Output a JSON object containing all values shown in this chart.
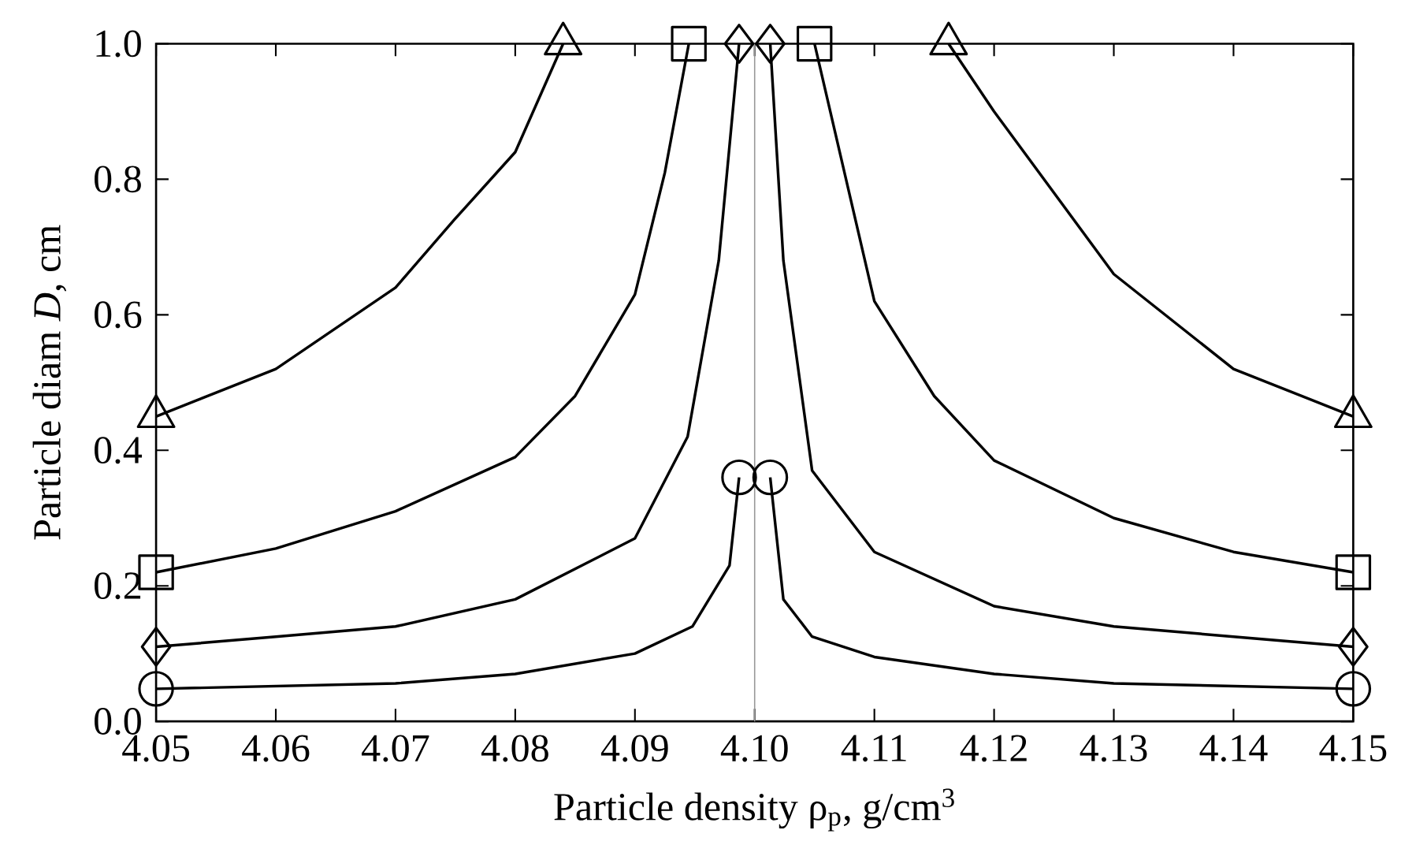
{
  "chart_data": {
    "type": "line",
    "xlabel": "Particle density ρ$_{p}$, g/cm$^{3}$",
    "ylabel": "Particle diam *D*, cm",
    "xlim": [
      4.05,
      4.15
    ],
    "ylim": [
      0,
      1.0
    ],
    "xticks": [
      4.05,
      4.06,
      4.07,
      4.08,
      4.09,
      {
        "value": 4.1,
        "label": "4.10"
      },
      4.11,
      4.12,
      4.13,
      4.14,
      4.15
    ],
    "yticks": [
      {
        "value": 0,
        "label": "0.0"
      },
      0.2,
      0.4,
      0.6,
      0.8,
      {
        "value": 1.0,
        "label": "1.0"
      }
    ],
    "line_style": "solid",
    "series": [
      {
        "color": "#000000",
        "x": [
          4.05,
          4.06,
          4.07,
          4.0749,
          4.08,
          4.084
        ],
        "values": [
          0.45,
          0.52,
          0.64,
          0.74,
          0.84,
          1.0
        ]
      },
      {
        "color": "#000000",
        "x": [
          4.1162,
          4.12,
          4.13,
          4.14,
          4.15
        ],
        "values": [
          1.0,
          0.9,
          0.66,
          0.52,
          0.45
        ]
      },
      {
        "color": "#000000",
        "x": [
          4.05,
          4.06,
          4.07,
          4.08,
          4.085,
          4.09,
          4.0925,
          4.0945
        ],
        "values": [
          0.22,
          0.255,
          0.31,
          0.39,
          0.48,
          0.63,
          0.81,
          1.0
        ]
      },
      {
        "color": "#000000",
        "x": [
          4.105,
          4.11,
          4.115,
          4.12,
          4.13,
          4.14,
          4.15
        ],
        "values": [
          1.0,
          0.62,
          0.48,
          0.385,
          0.3,
          0.25,
          0.22
        ]
      },
      {
        "color": "#000000",
        "x": [
          4.05,
          4.06,
          4.07,
          4.08,
          4.09,
          4.0944,
          4.097,
          4.0987
        ],
        "values": [
          0.11,
          0.125,
          0.14,
          0.18,
          0.27,
          0.42,
          0.68,
          1.0
        ]
      },
      {
        "color": "#000000",
        "x": [
          4.1013,
          4.1024,
          4.1048,
          4.11,
          4.12,
          4.13,
          4.14,
          4.15
        ],
        "values": [
          1.0,
          0.68,
          0.37,
          0.25,
          0.17,
          0.14,
          0.125,
          0.11
        ]
      },
      {
        "color": "#000000",
        "x": [
          4.05,
          4.07,
          4.08,
          4.09,
          4.0948,
          4.0979,
          4.0987
        ],
        "values": [
          0.048,
          0.056,
          0.07,
          0.1,
          0.14,
          0.23,
          0.36
        ]
      },
      {
        "color": "#000000",
        "x": [
          4.1013,
          4.1024,
          4.1048,
          4.11,
          4.12,
          4.13,
          4.15
        ],
        "values": [
          0.36,
          0.18,
          0.125,
          0.095,
          0.07,
          0.056,
          0.048
        ]
      },
      {
        "type": "scatter",
        "color": "#000000",
        "marker": "triangle",
        "x": [
          4.05,
          4.084,
          4.1162,
          4.15
        ],
        "values": [
          0.45,
          1.0,
          1.0,
          0.45
        ]
      },
      {
        "type": "scatter",
        "color": "#000000",
        "marker": "square",
        "x": [
          4.05,
          4.0945,
          4.105,
          4.15
        ],
        "values": [
          0.22,
          1.0,
          1.0,
          0.22
        ]
      },
      {
        "type": "scatter",
        "color": "#000000",
        "marker": "diamond",
        "x": [
          4.05,
          4.0987,
          4.1013,
          4.15
        ],
        "values": [
          0.11,
          1.0,
          1.0,
          0.11
        ]
      },
      {
        "type": "scatter",
        "color": "#000000",
        "marker": "circle",
        "x": [
          4.05,
          4.0987,
          4.1013,
          4.15
        ],
        "values": [
          0.048,
          0.36,
          0.36,
          0.048
        ]
      }
    ],
    "ref_lines": [
      {
        "axis": "x",
        "value": 4.1,
        "color": "#999999"
      }
    ]
  }
}
